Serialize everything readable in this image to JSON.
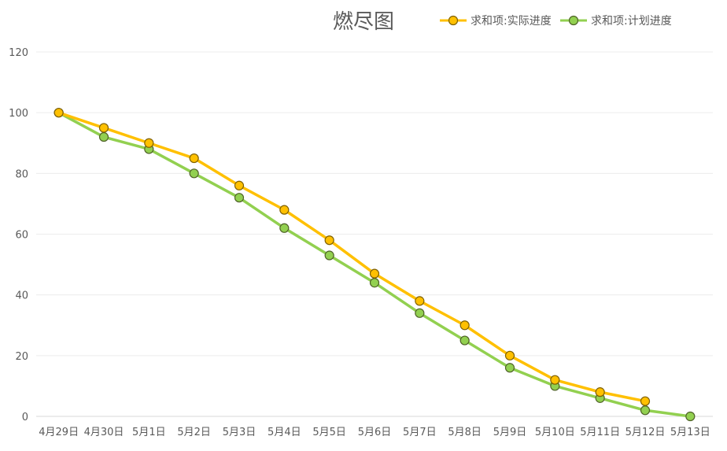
{
  "chart_data": {
    "type": "line",
    "title": "燃尽图",
    "xlabel": "",
    "ylabel": "",
    "ylim": [
      0,
      120
    ],
    "yticks": [
      0,
      20,
      40,
      60,
      80,
      100,
      120
    ],
    "grid": true,
    "legend_position": "top-right",
    "categories": [
      "4月29日",
      "4月30日",
      "5月1日",
      "5月2日",
      "5月3日",
      "5月4日",
      "5月5日",
      "5月6日",
      "5月7日",
      "5月8日",
      "5月9日",
      "5月10日",
      "5月11日",
      "5月12日",
      "5月13日"
    ],
    "series": [
      {
        "name": "求和项:实际进度",
        "color": "#ffc000",
        "marker_edge": "#7f6000",
        "values": [
          100,
          95,
          90,
          85,
          76,
          68,
          58,
          47,
          38,
          30,
          20,
          12,
          8,
          5,
          null
        ]
      },
      {
        "name": "求和项:计划进度",
        "color": "#92d050",
        "marker_edge": "#4f6228",
        "values": [
          100,
          92,
          88,
          80,
          72,
          62,
          53,
          44,
          34,
          25,
          16,
          10,
          6,
          2,
          0
        ]
      }
    ]
  }
}
